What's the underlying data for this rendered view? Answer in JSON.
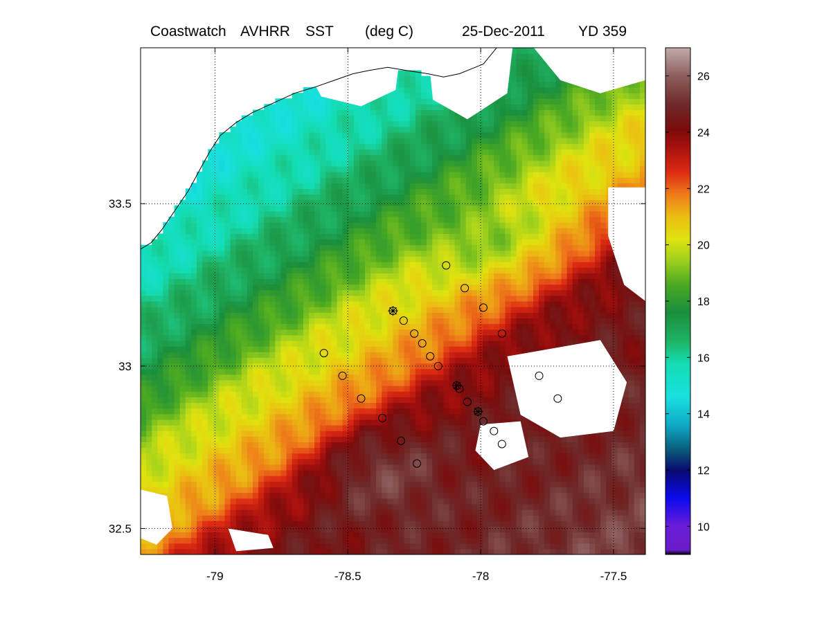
{
  "title": {
    "product": "Coastwatch",
    "sensor": "AVHRR",
    "variable": "SST",
    "units": "(deg C)",
    "date": "25-Dec-2011",
    "yearday": "YD 359"
  },
  "chart_data": {
    "type": "heatmap",
    "title": "Coastwatch AVHRR SST (deg C) 25-Dec-2011 YD 359",
    "xlabel": "",
    "ylabel": "",
    "xlim": [
      -79.28,
      -77.38
    ],
    "ylim": [
      32.42,
      33.98
    ],
    "x_ticks": [
      -79,
      -78.5,
      -78,
      -77.5
    ],
    "x_tick_labels": [
      "-79",
      "-78.5",
      "-78",
      "-77.5"
    ],
    "y_ticks": [
      32.5,
      33,
      33.5
    ],
    "y_tick_labels": [
      "32.5",
      "33",
      "33.5"
    ],
    "grid": "dotted",
    "colorbar": {
      "range": [
        9,
        27
      ],
      "ticks": [
        10,
        12,
        14,
        16,
        18,
        20,
        22,
        24,
        26
      ],
      "tick_labels": [
        "10",
        "12",
        "14",
        "16",
        "18",
        "20",
        "22",
        "24",
        "26"
      ],
      "colormap": [
        {
          "v": 9.0,
          "c": "#000000"
        },
        {
          "v": 9.15,
          "c": "#6a1cc8"
        },
        {
          "v": 10.0,
          "c": "#6a1cd8"
        },
        {
          "v": 11.0,
          "c": "#0a0aee"
        },
        {
          "v": 12.0,
          "c": "#0a0a6e"
        },
        {
          "v": 12.7,
          "c": "#0a5a7a"
        },
        {
          "v": 13.6,
          "c": "#10a9c6"
        },
        {
          "v": 14.6,
          "c": "#18e0e0"
        },
        {
          "v": 15.8,
          "c": "#14dcb0"
        },
        {
          "v": 16.6,
          "c": "#1fb264"
        },
        {
          "v": 17.6,
          "c": "#1a8e3c"
        },
        {
          "v": 18.6,
          "c": "#4caa22"
        },
        {
          "v": 19.5,
          "c": "#a4d21c"
        },
        {
          "v": 20.2,
          "c": "#e0e20e"
        },
        {
          "v": 21.0,
          "c": "#ebbd12"
        },
        {
          "v": 21.8,
          "c": "#ee7a1a"
        },
        {
          "v": 22.6,
          "c": "#dc2a12"
        },
        {
          "v": 23.5,
          "c": "#a5100e"
        },
        {
          "v": 24.1,
          "c": "#7a0c0c"
        },
        {
          "v": 25.0,
          "c": "#6e2a2a"
        },
        {
          "v": 26.0,
          "c": "#8e5e5e"
        },
        {
          "v": 27.0,
          "c": "#c2abab"
        }
      ]
    },
    "sst_model": {
      "front_axis": [
        -0.6,
        1.0
      ],
      "front_offset": 0.0,
      "stops": [
        [
          -1.5,
          14.2
        ],
        [
          -0.95,
          14.8
        ],
        [
          -0.72,
          15.8
        ],
        [
          -0.52,
          17.2
        ],
        [
          -0.4,
          18.3
        ],
        [
          -0.28,
          19.6
        ],
        [
          -0.18,
          20.4
        ],
        [
          -0.08,
          21.0
        ],
        [
          0.0,
          21.8
        ],
        [
          0.06,
          22.7
        ],
        [
          0.12,
          23.6
        ],
        [
          0.22,
          24.3
        ],
        [
          0.45,
          24.6
        ],
        [
          0.9,
          25.5
        ],
        [
          1.5,
          26.0
        ]
      ],
      "warm_tongue": {
        "center": [
          -78.35,
          32.66
        ],
        "spread": [
          0.22,
          0.14
        ],
        "value": 25.6
      },
      "cold_pocket": {
        "center": [
          -78.0,
          33.4
        ],
        "spread": [
          0.25,
          0.12
        ],
        "value": 18.0
      }
    },
    "station_markers": [
      {
        "lon": -78.13,
        "lat": 33.31,
        "symbol": "circle"
      },
      {
        "lon": -78.06,
        "lat": 33.24,
        "symbol": "circle"
      },
      {
        "lon": -77.99,
        "lat": 33.18,
        "symbol": "circle"
      },
      {
        "lon": -77.92,
        "lat": 33.1,
        "symbol": "circle"
      },
      {
        "lon": -78.33,
        "lat": 33.17,
        "symbol": "asterisk-circle"
      },
      {
        "lon": -78.29,
        "lat": 33.14,
        "symbol": "circle"
      },
      {
        "lon": -78.25,
        "lat": 33.1,
        "symbol": "circle"
      },
      {
        "lon": -78.22,
        "lat": 33.07,
        "symbol": "circle"
      },
      {
        "lon": -78.19,
        "lat": 33.03,
        "symbol": "circle"
      },
      {
        "lon": -78.16,
        "lat": 33.0,
        "symbol": "circle"
      },
      {
        "lon": -78.09,
        "lat": 32.94,
        "symbol": "asterisk-circle"
      },
      {
        "lon": -78.08,
        "lat": 32.93,
        "symbol": "circle"
      },
      {
        "lon": -78.05,
        "lat": 32.89,
        "symbol": "circle"
      },
      {
        "lon": -78.01,
        "lat": 32.86,
        "symbol": "asterisk-circle"
      },
      {
        "lon": -77.99,
        "lat": 32.83,
        "symbol": "circle"
      },
      {
        "lon": -77.95,
        "lat": 32.8,
        "symbol": "circle"
      },
      {
        "lon": -77.92,
        "lat": 32.76,
        "symbol": "circle"
      },
      {
        "lon": -78.59,
        "lat": 33.04,
        "symbol": "circle"
      },
      {
        "lon": -78.52,
        "lat": 32.97,
        "symbol": "circle"
      },
      {
        "lon": -78.45,
        "lat": 32.9,
        "symbol": "circle"
      },
      {
        "lon": -78.37,
        "lat": 32.84,
        "symbol": "circle"
      },
      {
        "lon": -78.3,
        "lat": 32.77,
        "symbol": "circle"
      },
      {
        "lon": -78.24,
        "lat": 32.7,
        "symbol": "circle"
      },
      {
        "lon": -77.78,
        "lat": 32.97,
        "symbol": "circle"
      },
      {
        "lon": -77.71,
        "lat": 32.9,
        "symbol": "circle"
      }
    ],
    "coastline": [
      [
        -79.28,
        33.36
      ],
      [
        -79.24,
        33.38
      ],
      [
        -79.2,
        33.42
      ],
      [
        -79.15,
        33.48
      ],
      [
        -79.1,
        33.54
      ],
      [
        -79.06,
        33.6
      ],
      [
        -79.02,
        33.66
      ],
      [
        -78.98,
        33.71
      ],
      [
        -78.92,
        33.75
      ],
      [
        -78.86,
        33.78
      ],
      [
        -78.78,
        33.81
      ],
      [
        -78.7,
        33.84
      ],
      [
        -78.62,
        33.86
      ],
      [
        -78.55,
        33.88
      ],
      [
        -78.48,
        33.9
      ],
      [
        -78.42,
        33.91
      ],
      [
        -78.35,
        33.92
      ],
      [
        -78.28,
        33.91
      ],
      [
        -78.2,
        33.9
      ],
      [
        -78.14,
        33.89
      ],
      [
        -78.08,
        33.9
      ],
      [
        -78.02,
        33.92
      ],
      [
        -77.99,
        33.93
      ],
      [
        -77.96,
        33.96
      ],
      [
        -77.94,
        33.98
      ]
    ],
    "cloud_regions": [
      [
        [
          -78.7,
          33.98
        ],
        [
          -78.3,
          33.98
        ],
        [
          -78.32,
          33.85
        ],
        [
          -78.45,
          33.8
        ],
        [
          -78.6,
          33.83
        ]
      ],
      [
        [
          -78.2,
          33.98
        ],
        [
          -77.88,
          33.98
        ],
        [
          -77.9,
          33.84
        ],
        [
          -78.05,
          33.76
        ],
        [
          -78.18,
          33.82
        ]
      ],
      [
        [
          -77.8,
          33.98
        ],
        [
          -77.38,
          33.98
        ],
        [
          -77.38,
          33.88
        ],
        [
          -77.55,
          33.84
        ],
        [
          -77.7,
          33.88
        ]
      ],
      [
        [
          -77.52,
          33.55
        ],
        [
          -77.38,
          33.55
        ],
        [
          -77.38,
          33.2
        ],
        [
          -77.46,
          33.25
        ],
        [
          -77.52,
          33.4
        ]
      ],
      [
        [
          -77.9,
          33.03
        ],
        [
          -77.55,
          33.08
        ],
        [
          -77.45,
          32.95
        ],
        [
          -77.5,
          32.8
        ],
        [
          -77.7,
          32.78
        ],
        [
          -77.85,
          32.85
        ]
      ],
      [
        [
          -78.0,
          32.82
        ],
        [
          -77.85,
          32.83
        ],
        [
          -77.82,
          32.72
        ],
        [
          -77.95,
          32.68
        ],
        [
          -78.02,
          32.74
        ]
      ],
      [
        [
          -79.28,
          32.62
        ],
        [
          -79.18,
          32.6
        ],
        [
          -79.16,
          32.5
        ],
        [
          -79.22,
          32.45
        ],
        [
          -79.28,
          32.47
        ]
      ],
      [
        [
          -78.95,
          32.5
        ],
        [
          -78.8,
          32.48
        ],
        [
          -78.78,
          32.44
        ],
        [
          -78.92,
          32.43
        ]
      ]
    ]
  }
}
